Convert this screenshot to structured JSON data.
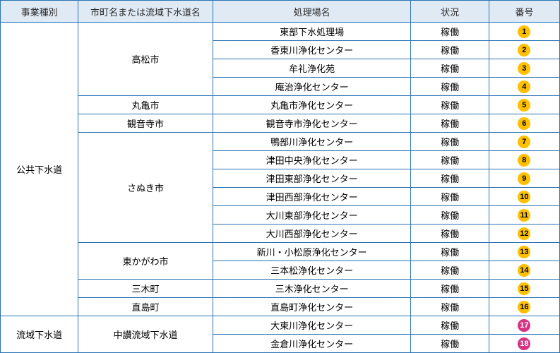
{
  "headers": {
    "category": "事業種別",
    "city": "市町名または流域下水道名",
    "plant": "処理場名",
    "status": "状況",
    "number": "番号"
  },
  "colors": {
    "border": "#2a72b5",
    "header_bg": "#dfeaf4",
    "badge_orange": "#ffc000",
    "badge_pink": "#d63384"
  },
  "categories": [
    {
      "name": "公共下水道",
      "rowspan": 16,
      "cities": [
        {
          "name": "高松市",
          "rowspan": 4,
          "plants": [
            {
              "name": "東部下水処理場",
              "status": "稼働",
              "num": "1",
              "style": "orange"
            },
            {
              "name": "香東川浄化センター",
              "status": "稼働",
              "num": "2",
              "style": "orange"
            },
            {
              "name": "牟礼浄化苑",
              "status": "稼働",
              "num": "3",
              "style": "orange"
            },
            {
              "name": "庵治浄化センター",
              "status": "稼働",
              "num": "4",
              "style": "orange"
            }
          ]
        },
        {
          "name": "丸亀市",
          "rowspan": 1,
          "plants": [
            {
              "name": "丸亀市浄化センター",
              "status": "稼働",
              "num": "5",
              "style": "orange"
            }
          ]
        },
        {
          "name": "観音寺市",
          "rowspan": 1,
          "plants": [
            {
              "name": "観音寺市浄化センター",
              "status": "稼働",
              "num": "6",
              "style": "orange"
            }
          ]
        },
        {
          "name": "さぬき市",
          "rowspan": 6,
          "plants": [
            {
              "name": "鴨部川浄化センター",
              "status": "稼働",
              "num": "7",
              "style": "orange"
            },
            {
              "name": "津田中央浄化センター",
              "status": "稼働",
              "num": "8",
              "style": "orange"
            },
            {
              "name": "津田東部浄化センター",
              "status": "稼働",
              "num": "9",
              "style": "orange"
            },
            {
              "name": "津田西部浄化センター",
              "status": "稼働",
              "num": "10",
              "style": "orange"
            },
            {
              "name": "大川東部浄化センター",
              "status": "稼働",
              "num": "11",
              "style": "orange"
            },
            {
              "name": "大川西部浄化センター",
              "status": "稼働",
              "num": "12",
              "style": "orange"
            }
          ]
        },
        {
          "name": "東かがわ市",
          "rowspan": 2,
          "plants": [
            {
              "name": "新川・小松原浄化センター",
              "status": "稼働",
              "num": "13",
              "style": "orange"
            },
            {
              "name": "三本松浄化センター",
              "status": "稼働",
              "num": "14",
              "style": "orange"
            }
          ]
        },
        {
          "name": "三木町",
          "rowspan": 1,
          "plants": [
            {
              "name": "三木浄化センター",
              "status": "稼働",
              "num": "15",
              "style": "orange"
            }
          ]
        },
        {
          "name": "直島町",
          "rowspan": 1,
          "plants": [
            {
              "name": "直島町浄化センター",
              "status": "稼働",
              "num": "16",
              "style": "orange"
            }
          ]
        }
      ]
    },
    {
      "name": "流域下水道",
      "rowspan": 2,
      "cities": [
        {
          "name": "中讃流域下水道",
          "rowspan": 2,
          "plants": [
            {
              "name": "大束川浄化センター",
              "status": "稼働",
              "num": "17",
              "style": "pink"
            },
            {
              "name": "金倉川浄化センター",
              "status": "稼働",
              "num": "18",
              "style": "pink"
            }
          ]
        }
      ]
    }
  ]
}
